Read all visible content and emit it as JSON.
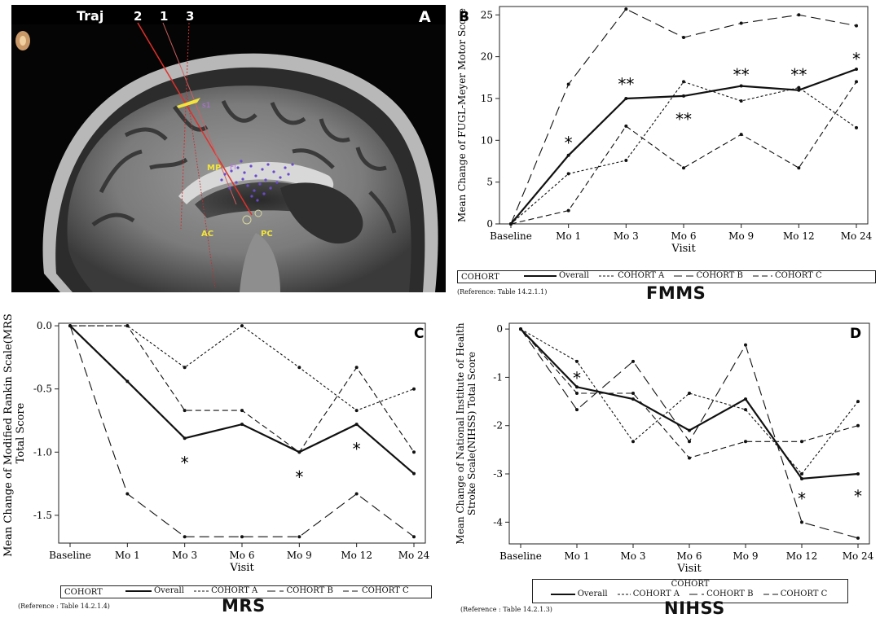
{
  "panel_a": {
    "letter": "A",
    "traj_label": "Traj",
    "traj_numbers": [
      "2",
      "1",
      "3"
    ],
    "mp_label": "MP",
    "ac_label": "AC",
    "pc_label": "PC",
    "fl_label": "Fl",
    "marker_label": "s1"
  },
  "panel_b": {
    "caption": "FMMS",
    "reference": "(Reference: Table 14.2.1.1)"
  },
  "panel_c": {
    "caption": "MRS",
    "reference": "(Reference : Table 14.2.1.4)"
  },
  "panel_d": {
    "caption": "NIHSS",
    "reference": "(Reference : Table 14.2.1.3)"
  },
  "legend": {
    "cohort_label": "COHORT",
    "overall": "Overall",
    "cohort_a": "COHORT A",
    "cohort_b": "COHORT B",
    "cohort_c": "COHORT C"
  },
  "chart_data": [
    {
      "id": "B",
      "type": "line",
      "letter": "B",
      "title": "",
      "xlabel": "Visit",
      "ylabel": "Mean Change of FUGL-Meyer Motor Score",
      "categories": [
        "Baseline",
        "Mo 1",
        "Mo 3",
        "Mo 6",
        "Mo 9",
        "Mo 12",
        "Mo 24"
      ],
      "ylim": [
        0,
        26
      ],
      "yticks": [
        0,
        5,
        10,
        15,
        20,
        25
      ],
      "ytick_labels": [
        "0",
        "5",
        "10",
        "15",
        "20",
        "25"
      ],
      "series": [
        {
          "name": "Overall",
          "style": "solid",
          "values": [
            0,
            8.2,
            15,
            15.3,
            16.5,
            16,
            18.5
          ]
        },
        {
          "name": "COHORT A",
          "style": "short-dash",
          "values": [
            0,
            6,
            7.6,
            17,
            14.7,
            16.3,
            11.5
          ]
        },
        {
          "name": "COHORT B",
          "style": "long-dash",
          "values": [
            0,
            16.7,
            25.7,
            22.3,
            24,
            25,
            23.7
          ]
        },
        {
          "name": "COHORT C",
          "style": "dash",
          "values": [
            0,
            1.6,
            11.7,
            6.7,
            10.7,
            6.7,
            17
          ]
        }
      ],
      "annotations": [
        {
          "text": "*",
          "category": "Mo 1",
          "y": 9.8
        },
        {
          "text": "**",
          "category": "Mo 3",
          "y": 16.8
        },
        {
          "text": "**",
          "category": "Mo 6",
          "y": 12.6
        },
        {
          "text": "**",
          "category": "Mo 9",
          "y": 17.9
        },
        {
          "text": "**",
          "category": "Mo 12",
          "y": 17.9
        },
        {
          "text": "*",
          "category": "Mo 24",
          "y": 19.8
        }
      ]
    },
    {
      "id": "C",
      "type": "line",
      "letter": "C",
      "title": "",
      "xlabel": "Visit",
      "ylabel": "Mean Change of Modified Rankin Scale(MRS) Total Score",
      "categories": [
        "Baseline",
        "Mo 1",
        "Mo 3",
        "Mo 6",
        "Mo 9",
        "Mo 12",
        "Mo 24"
      ],
      "ylim": [
        -1.72,
        0.02
      ],
      "yticks": [
        0,
        -0.5,
        -1,
        -1.5
      ],
      "ytick_labels": [
        "0.0",
        "-0.5",
        "-1.0",
        "-1.5"
      ],
      "series": [
        {
          "name": "Overall",
          "style": "solid",
          "values": [
            0,
            -0.44,
            -0.89,
            -0.78,
            -1.0,
            -0.78,
            -1.17
          ]
        },
        {
          "name": "COHORT A",
          "style": "short-dash",
          "values": [
            0,
            0,
            -0.33,
            0,
            -0.33,
            -0.67,
            -0.5
          ]
        },
        {
          "name": "COHORT B",
          "style": "long-dash",
          "values": [
            0,
            -1.33,
            -1.67,
            -1.67,
            -1.67,
            -1.33,
            -1.67
          ]
        },
        {
          "name": "COHORT C",
          "style": "dash",
          "values": [
            0,
            0,
            -0.67,
            -0.67,
            -1.0,
            -0.33,
            -1.0
          ]
        }
      ],
      "annotations": [
        {
          "text": "*",
          "category": "Mo 3",
          "y": -1.08
        },
        {
          "text": "*",
          "category": "Mo 9",
          "y": -1.19
        },
        {
          "text": "*",
          "category": "Mo 12",
          "y": -0.97
        }
      ]
    },
    {
      "id": "D",
      "type": "line",
      "letter": "D",
      "title": "",
      "xlabel": "Visit",
      "ylabel": "Mean Change of National Institute of Health Stroke Scale(NIHSS) Total Score",
      "categories": [
        "Baseline",
        "Mo 1",
        "Mo 3",
        "Mo 6",
        "Mo 9",
        "Mo 12",
        "Mo 24"
      ],
      "ylim": [
        -4.45,
        0.12
      ],
      "yticks": [
        0,
        -1,
        -2,
        -3,
        -4
      ],
      "ytick_labels": [
        "0",
        "-1",
        "-2",
        "-3",
        "-4"
      ],
      "series": [
        {
          "name": "Overall",
          "style": "solid",
          "values": [
            0,
            -1.2,
            -1.45,
            -2.1,
            -1.45,
            -3.1,
            -3.0
          ]
        },
        {
          "name": "COHORT A",
          "style": "short-dash",
          "values": [
            0,
            -0.67,
            -2.33,
            -1.33,
            -1.67,
            -3.0,
            -1.5
          ]
        },
        {
          "name": "COHORT B",
          "style": "long-dash",
          "values": [
            0,
            -1.67,
            -0.67,
            -2.33,
            -0.33,
            -4.0,
            -4.33
          ]
        },
        {
          "name": "COHORT C",
          "style": "dash",
          "values": [
            0,
            -1.33,
            -1.33,
            -2.67,
            -2.33,
            -2.33,
            -2.0
          ]
        }
      ],
      "annotations": [
        {
          "text": "*",
          "category": "Mo 1",
          "y": -1.0
        },
        {
          "text": "*",
          "category": "Mo 12",
          "y": -3.5
        },
        {
          "text": "*",
          "category": "Mo 24",
          "y": -3.45
        }
      ]
    }
  ]
}
